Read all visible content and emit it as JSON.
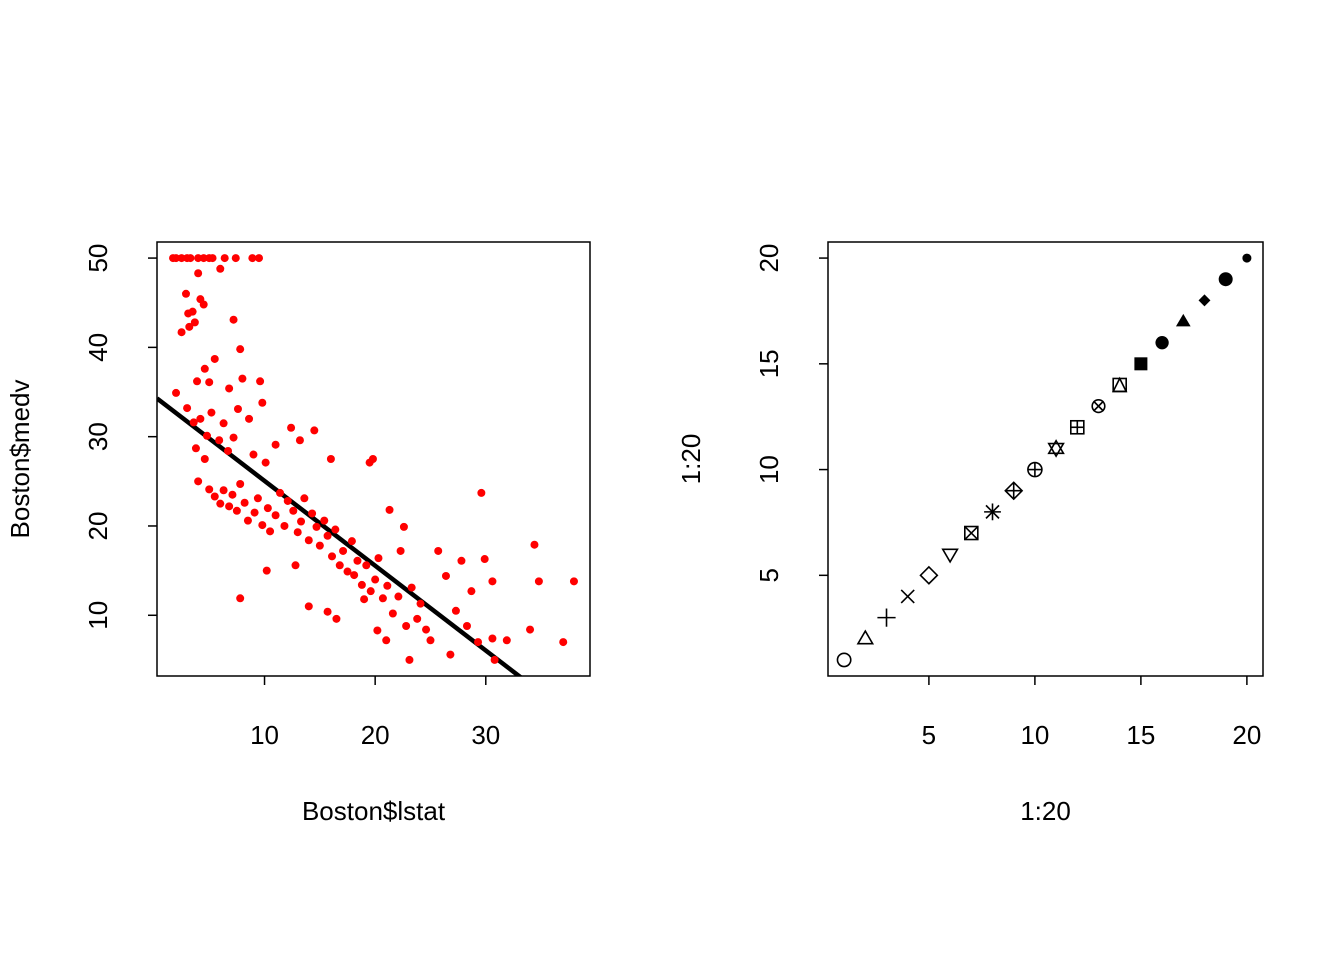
{
  "chart_data": [
    {
      "type": "scatter",
      "x_label": "Boston$lstat",
      "y_label": "Boston$medv",
      "color": "#ff0000",
      "x": [
        1.73,
        2.0,
        2.5,
        3.0,
        3.3,
        4.0,
        4.5,
        5.0,
        5.3,
        6.4,
        7.4,
        8.9,
        9.5,
        2.9,
        3.1,
        3.2,
        2.5,
        3.5,
        4.0,
        4.2,
        4.5,
        6.0,
        3.7,
        7.2,
        7.8,
        5.5,
        4.6,
        3.9,
        5.0,
        6.8,
        8.0,
        9.6,
        9.8,
        2.0,
        3.0,
        3.6,
        4.2,
        5.2,
        6.3,
        7.6,
        8.6,
        4.8,
        5.9,
        3.8,
        4.6,
        6.7,
        7.2,
        9.0,
        10.1,
        11.0,
        12.4,
        14.5,
        13.2,
        16.0,
        19.5,
        19.8,
        4.0,
        5.0,
        5.5,
        6.0,
        6.3,
        6.8,
        7.1,
        7.5,
        7.8,
        8.2,
        8.5,
        9.1,
        9.4,
        9.8,
        10.3,
        10.5,
        11.0,
        11.4,
        11.8,
        12.1,
        12.6,
        13.0,
        13.3,
        13.6,
        14.0,
        14.3,
        14.7,
        15.0,
        15.4,
        15.7,
        16.1,
        16.4,
        16.8,
        17.1,
        17.5,
        17.9,
        18.1,
        18.4,
        18.8,
        19.2,
        19.6,
        20.0,
        20.3,
        20.7,
        21.1,
        21.3,
        21.6,
        22.1,
        22.6,
        22.8,
        23.1,
        23.3,
        23.8,
        24.1,
        24.6,
        25.0,
        25.7,
        26.4,
        26.8,
        27.3,
        27.8,
        28.3,
        28.7,
        29.3,
        29.6,
        29.9,
        30.6,
        30.8,
        30.6,
        31.9,
        34.0,
        34.4,
        34.8,
        37.0,
        37.97,
        7.8,
        10.2,
        12.8,
        14.0,
        15.7,
        16.5,
        19.0,
        20.2,
        21.0,
        22.3
      ],
      "values": [
        50,
        50,
        50,
        50,
        50,
        50,
        50,
        50,
        50,
        50,
        50,
        50,
        50,
        46.0,
        43.8,
        42.3,
        41.7,
        44.0,
        48.3,
        45.4,
        44.8,
        48.8,
        42.8,
        43.1,
        39.8,
        38.7,
        37.6,
        36.2,
        36.1,
        35.4,
        36.5,
        36.2,
        33.8,
        34.9,
        33.2,
        31.6,
        32.0,
        32.7,
        31.5,
        33.1,
        32.0,
        30.1,
        29.6,
        28.7,
        27.5,
        28.4,
        29.9,
        28.0,
        27.1,
        29.1,
        31.0,
        30.7,
        29.6,
        27.5,
        27.1,
        27.5,
        25.0,
        24.1,
        23.3,
        22.5,
        24.0,
        22.2,
        23.5,
        21.7,
        24.7,
        22.6,
        20.6,
        21.5,
        23.1,
        20.1,
        22.0,
        19.4,
        21.2,
        23.7,
        20.0,
        22.8,
        21.7,
        19.3,
        20.5,
        23.1,
        18.4,
        21.4,
        19.9,
        17.8,
        20.6,
        18.9,
        16.6,
        19.6,
        15.6,
        17.2,
        14.9,
        18.3,
        14.5,
        16.1,
        13.4,
        15.6,
        12.7,
        14.0,
        16.4,
        11.9,
        13.3,
        21.8,
        10.2,
        12.1,
        19.9,
        8.8,
        5.0,
        13.1,
        9.6,
        11.3,
        8.4,
        7.2,
        17.2,
        14.4,
        5.6,
        10.5,
        16.1,
        8.8,
        12.7,
        7.0,
        23.7,
        16.3,
        7.4,
        5.0,
        13.8,
        7.2,
        8.4,
        17.9,
        13.8,
        7.0,
        13.8,
        11.9,
        15.0,
        15.6,
        11.0,
        10.4,
        9.6,
        11.8,
        8.3,
        7.2,
        17.2
      ],
      "line": {
        "intercept": 34.55,
        "slope": -0.95,
        "color": "#000000"
      },
      "xlim": [
        0.28,
        39.42
      ],
      "xticks": [
        10,
        20,
        30
      ],
      "ylim": [
        3.2,
        51.8
      ],
      "yticks": [
        10,
        20,
        30,
        40,
        50
      ]
    },
    {
      "type": "scatter",
      "x_label": "1:20",
      "y_label": "1:20",
      "color": "#000000",
      "x": [
        1,
        2,
        3,
        4,
        5,
        6,
        7,
        8,
        9,
        10,
        11,
        12,
        13,
        14,
        15,
        16,
        17,
        18,
        19,
        20
      ],
      "values": [
        1,
        2,
        3,
        4,
        5,
        6,
        7,
        8,
        9,
        10,
        11,
        12,
        13,
        14,
        15,
        16,
        17,
        18,
        19,
        20
      ],
      "markers": [
        "circle-open",
        "triangle-open",
        "plus",
        "cross",
        "diamond-open",
        "triangle-down-open",
        "square-cross",
        "asterisk",
        "diamond-plus",
        "circle-plus",
        "star-of-david",
        "square-plus",
        "circle-cross",
        "square-triangle",
        "square-filled",
        "circle-filled",
        "triangle-filled",
        "diamond-filled-small",
        "circle-filled-large",
        "circle-filled-small"
      ],
      "xlim": [
        0.24,
        20.76
      ],
      "xticks": [
        5,
        10,
        15,
        20
      ],
      "ylim": [
        0.24,
        20.76
      ],
      "yticks": [
        5,
        10,
        15,
        20
      ]
    }
  ]
}
